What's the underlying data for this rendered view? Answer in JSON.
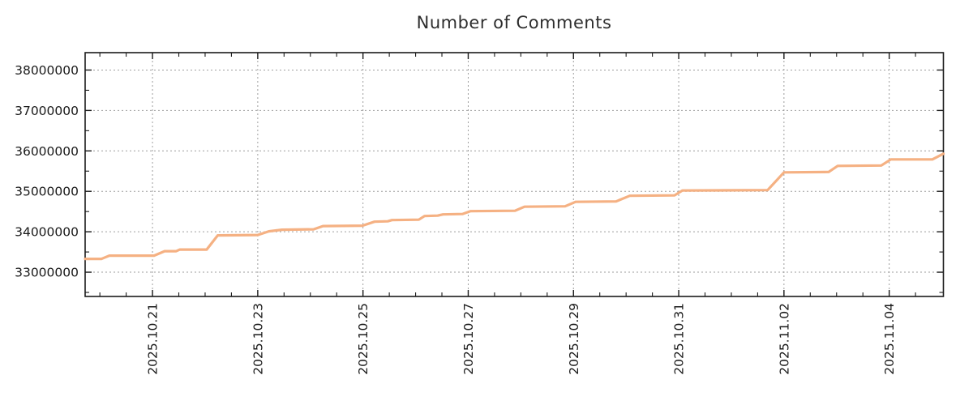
{
  "chart_data": {
    "type": "line",
    "title": "Number of Comments",
    "colors": {
      "line": "#f5b183",
      "grid": "#9e9e9e",
      "axis": "#1a1a1a",
      "tick_text": "#1a1a1a",
      "title_text": "#2e2e2e",
      "background": "#ffffff"
    },
    "x": {
      "unit": "days since 2025-10-19 00:00",
      "range": [
        0.72,
        17.03
      ],
      "minor_step": 0.5,
      "major_ticks": [
        {
          "t": 2,
          "label": "2025.10.21"
        },
        {
          "t": 4,
          "label": "2025.10.23"
        },
        {
          "t": 6,
          "label": "2025.10.25"
        },
        {
          "t": 8,
          "label": "2025.10.27"
        },
        {
          "t": 10,
          "label": "2025.10.29"
        },
        {
          "t": 12,
          "label": "2025.10.31"
        },
        {
          "t": 14,
          "label": "2025.11.02"
        },
        {
          "t": 16,
          "label": "2025.11.04"
        }
      ]
    },
    "y": {
      "range": [
        32400000,
        38430000
      ],
      "minor_step": 500000,
      "major_ticks": [
        {
          "v": 33000000,
          "label": "33000000"
        },
        {
          "v": 34000000,
          "label": "34000000"
        },
        {
          "v": 35000000,
          "label": "35000000"
        },
        {
          "v": 36000000,
          "label": "36000000"
        },
        {
          "v": 37000000,
          "label": "37000000"
        },
        {
          "v": 38000000,
          "label": "38000000"
        }
      ]
    },
    "grid": "major-dashed",
    "legend": "none",
    "series": [
      {
        "name": "comments",
        "color": "#f5b183",
        "points": [
          [
            0.72,
            33330000
          ],
          [
            1.03,
            33330000
          ],
          [
            1.18,
            33410000
          ],
          [
            2.03,
            33410000
          ],
          [
            2.23,
            33520000
          ],
          [
            2.45,
            33520000
          ],
          [
            2.52,
            33560000
          ],
          [
            3.03,
            33560000
          ],
          [
            3.24,
            33910000
          ],
          [
            4.0,
            33920000
          ],
          [
            4.21,
            34010000
          ],
          [
            4.46,
            34050000
          ],
          [
            5.06,
            34060000
          ],
          [
            5.24,
            34140000
          ],
          [
            5.99,
            34150000
          ],
          [
            6.22,
            34250000
          ],
          [
            6.47,
            34260000
          ],
          [
            6.55,
            34290000
          ],
          [
            7.06,
            34300000
          ],
          [
            7.17,
            34390000
          ],
          [
            7.42,
            34400000
          ],
          [
            7.52,
            34430000
          ],
          [
            7.89,
            34440000
          ],
          [
            8.04,
            34510000
          ],
          [
            8.89,
            34520000
          ],
          [
            9.07,
            34620000
          ],
          [
            9.84,
            34630000
          ],
          [
            10.04,
            34740000
          ],
          [
            10.81,
            34750000
          ],
          [
            11.07,
            34890000
          ],
          [
            11.92,
            34900000
          ],
          [
            12.07,
            35020000
          ],
          [
            13.69,
            35030000
          ],
          [
            14.0,
            35470000
          ],
          [
            14.85,
            35480000
          ],
          [
            15.02,
            35630000
          ],
          [
            15.85,
            35640000
          ],
          [
            16.03,
            35790000
          ],
          [
            16.82,
            35790000
          ],
          [
            17.03,
            35930000
          ]
        ]
      }
    ]
  }
}
